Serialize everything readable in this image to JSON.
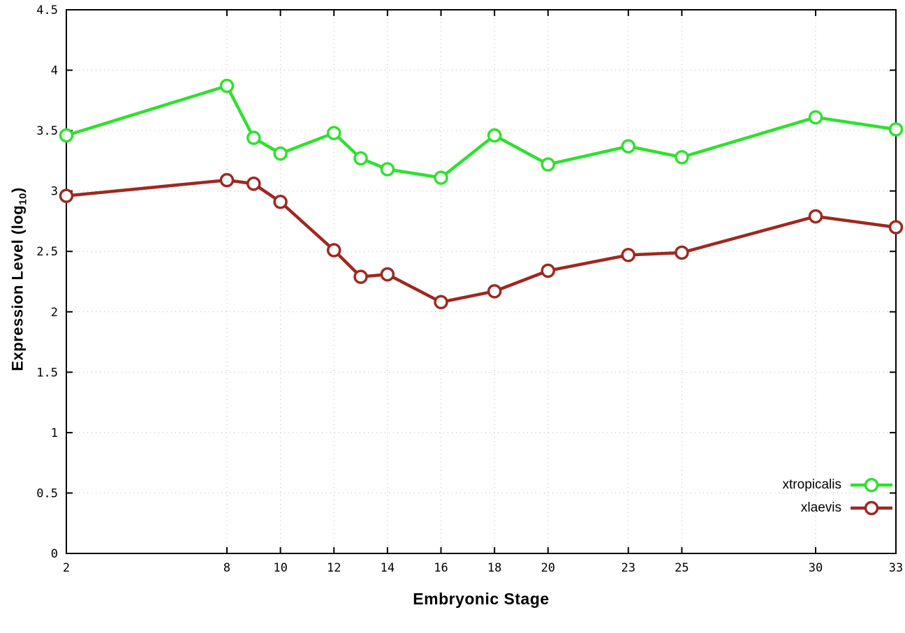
{
  "chart_data": {
    "type": "line",
    "title": "",
    "xlabel": "Embryonic Stage",
    "ylabel": {
      "prefix": "Expression Level (log",
      "sub": "10",
      "suffix": ")"
    },
    "xlim": [
      2,
      33
    ],
    "ylim": [
      0,
      4.5
    ],
    "xticks": [
      2,
      8,
      10,
      12,
      14,
      16,
      18,
      20,
      23,
      25,
      30,
      33
    ],
    "yticks": [
      0,
      0.5,
      1,
      1.5,
      2,
      2.5,
      3,
      3.5,
      4,
      4.5
    ],
    "grid": true,
    "legend_position": "bottom-right",
    "x": [
      2,
      8,
      9,
      10,
      12,
      13,
      14,
      16,
      18,
      20,
      23,
      25,
      30,
      33
    ],
    "series": [
      {
        "name": "xtropicalis",
        "color": "#2ee12e",
        "values": [
          3.46,
          3.87,
          3.44,
          3.31,
          3.48,
          3.27,
          3.18,
          3.11,
          3.46,
          3.22,
          3.37,
          3.28,
          3.61,
          3.51
        ]
      },
      {
        "name": "xlaevis",
        "color": "#9e2820",
        "values": [
          2.96,
          3.09,
          3.06,
          2.91,
          2.51,
          2.29,
          2.31,
          2.08,
          2.17,
          2.34,
          2.47,
          2.49,
          2.79,
          2.7
        ]
      }
    ]
  }
}
